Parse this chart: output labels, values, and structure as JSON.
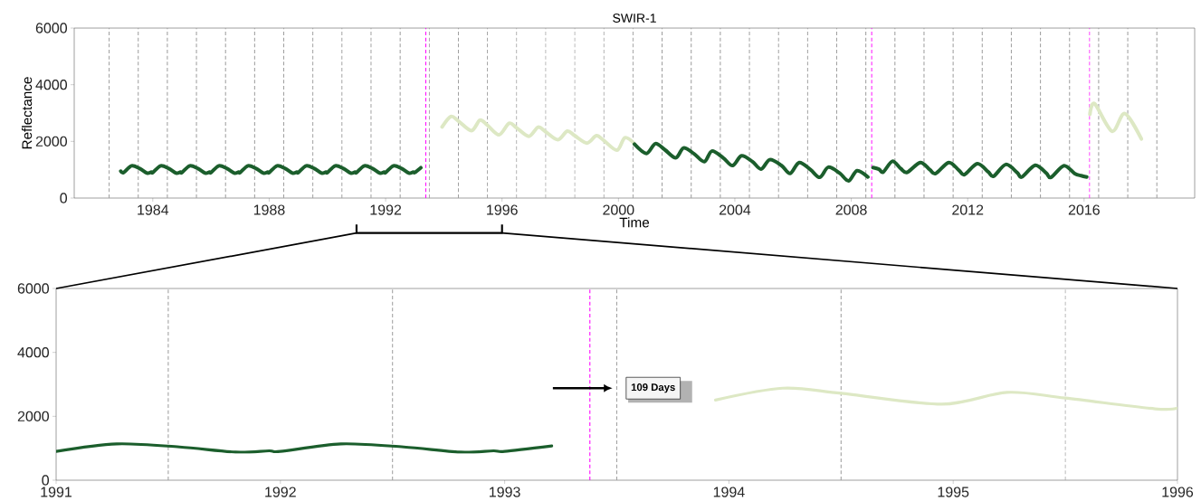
{
  "chart_data": [
    {
      "type": "line",
      "title": "SWIR-1",
      "xlabel": "Time",
      "ylabel": "Reflectance",
      "xlim": [
        1981.3,
        2019.8
      ],
      "ylim": [
        0,
        6000
      ],
      "xticks": [
        1984,
        1988,
        1992,
        1996,
        2000,
        2004,
        2008,
        2012,
        2016
      ],
      "yticks": [
        0,
        2000,
        4000,
        6000
      ],
      "series": [
        {
          "color": "#1b5e2c",
          "x": [
            1982.9,
            1983.0,
            1983.27,
            1983.55,
            1983.8,
            1983.95,
            1984.0,
            1984.27,
            1984.55,
            1984.8,
            1984.95,
            1985.0,
            1985.27,
            1985.55,
            1985.8,
            1985.95,
            1986.0,
            1986.27,
            1986.55,
            1986.8,
            1986.95,
            1987.0,
            1987.27,
            1987.55,
            1987.8,
            1987.95,
            1988.0,
            1988.27,
            1988.55,
            1988.8,
            1988.95,
            1989.0,
            1989.27,
            1989.55,
            1989.8,
            1989.95,
            1990.0,
            1990.27,
            1990.55,
            1990.8,
            1990.95,
            1991.0,
            1991.27,
            1991.55,
            1991.8,
            1991.95,
            1992.0,
            1992.27,
            1992.55,
            1992.8,
            1992.95,
            1993.0,
            1993.21
          ],
          "values": [
            950,
            900,
            1137,
            1040,
            880,
            920,
            900,
            1137,
            1040,
            880,
            920,
            900,
            1137,
            1040,
            880,
            920,
            900,
            1137,
            1040,
            880,
            920,
            900,
            1137,
            1040,
            880,
            920,
            900,
            1137,
            1040,
            880,
            920,
            900,
            1137,
            1040,
            880,
            920,
            900,
            1137,
            1040,
            880,
            920,
            900,
            1137,
            1040,
            880,
            920,
            900,
            1137,
            1040,
            880,
            920,
            900,
            1070
          ]
        },
        {
          "color": "#dde8c4",
          "x": [
            1993.94,
            1994.24,
            1994.5,
            1994.95,
            1995.24,
            1995.5,
            1995.9,
            1996.24,
            1996.5,
            1996.92,
            1997.24,
            1997.5,
            1997.92,
            1998.24,
            1998.5,
            1998.92,
            1999.24,
            1999.5,
            1999.95,
            2000.22,
            2000.55
          ],
          "values": [
            2510,
            2880,
            2720,
            2380,
            2750,
            2570,
            2235,
            2640,
            2480,
            2180,
            2500,
            2340,
            2060,
            2360,
            2200,
            1940,
            2200,
            2030,
            1690,
            2130,
            1920
          ]
        },
        {
          "color": "#1b5e2c",
          "x": [
            2000.55,
            2000.96,
            2001.27,
            2001.6,
            2001.97,
            2002.24,
            2002.6,
            2002.95,
            2003.21,
            2003.6,
            2003.92,
            2004.23,
            2004.6,
            2004.9,
            2005.2,
            2005.6,
            2005.9,
            2006.21,
            2006.6,
            2006.92,
            2007.21,
            2007.6,
            2007.91,
            2008.2,
            2008.57
          ],
          "values": [
            1900,
            1574,
            1920,
            1700,
            1420,
            1768,
            1560,
            1283,
            1657,
            1420,
            1146,
            1490,
            1290,
            1021,
            1353,
            1150,
            868,
            1255,
            1000,
            731,
            1090,
            880,
            606,
            967,
            744
          ]
        },
        {
          "color": "#1b5e2c",
          "x": [
            2008.75,
            2008.95,
            2009.1,
            2009.41,
            2009.7,
            2009.92,
            2010.37,
            2010.7,
            2010.9,
            2011.35,
            2011.7,
            2011.89,
            2012.33,
            2012.7,
            2012.89,
            2013.31,
            2013.7,
            2013.86,
            2014.32,
            2014.7,
            2014.86,
            2015.31,
            2015.68,
            2015.9,
            2016.09
          ],
          "values": [
            1076,
            1020,
            920,
            1297,
            1040,
            910,
            1255,
            1000,
            868,
            1255,
            980,
            827,
            1212,
            930,
            772,
            1185,
            900,
            744,
            1157,
            880,
            731,
            1143,
            860,
            790,
            744
          ]
        },
        {
          "color": "#dde8c4",
          "x": [
            2016.2,
            2016.36,
            2016.96,
            2017.4,
            2017.97
          ],
          "values": [
            2955,
            3330,
            2360,
            2980,
            2085
          ]
        }
      ],
      "ref_lines": [
        {
          "axis": "x",
          "value": 1982.5,
          "color": "#a0a0a0",
          "line_style": "dashed"
        },
        {
          "axis": "x",
          "value": 1983.5,
          "color": "#a0a0a0",
          "line_style": "dashed"
        },
        {
          "axis": "x",
          "value": 1984.5,
          "color": "#a0a0a0",
          "line_style": "dashed"
        },
        {
          "axis": "x",
          "value": 1985.5,
          "color": "#a0a0a0",
          "line_style": "dashed"
        },
        {
          "axis": "x",
          "value": 1986.5,
          "color": "#a0a0a0",
          "line_style": "dashed"
        },
        {
          "axis": "x",
          "value": 1987.5,
          "color": "#a0a0a0",
          "line_style": "dashed"
        },
        {
          "axis": "x",
          "value": 1988.5,
          "color": "#a0a0a0",
          "line_style": "dashed"
        },
        {
          "axis": "x",
          "value": 1989.5,
          "color": "#a0a0a0",
          "line_style": "dashed"
        },
        {
          "axis": "x",
          "value": 1990.5,
          "color": "#a0a0a0",
          "line_style": "dashed"
        },
        {
          "axis": "x",
          "value": 1991.5,
          "color": "#a0a0a0",
          "line_style": "dashed"
        },
        {
          "axis": "x",
          "value": 1992.5,
          "color": "#a0a0a0",
          "line_style": "dashed"
        },
        {
          "axis": "x",
          "value": 1993.5,
          "color": "#a0a0a0",
          "line_style": "dashed"
        },
        {
          "axis": "x",
          "value": 1994.5,
          "color": "#a0a0a0",
          "line_style": "dashed"
        },
        {
          "axis": "x",
          "value": 1995.5,
          "color": "#a0a0a0",
          "line_style": "dashed"
        },
        {
          "axis": "x",
          "value": 1996.5,
          "color": "#a0a0a0",
          "line_style": "dashed"
        },
        {
          "axis": "x",
          "value": 1997.5,
          "color": "#a0a0a0",
          "line_style": "dashed"
        },
        {
          "axis": "x",
          "value": 1998.5,
          "color": "#a0a0a0",
          "line_style": "dashed"
        },
        {
          "axis": "x",
          "value": 1999.5,
          "color": "#a0a0a0",
          "line_style": "dashed"
        },
        {
          "axis": "x",
          "value": 2000.5,
          "color": "#a0a0a0",
          "line_style": "dashed"
        },
        {
          "axis": "x",
          "value": 2001.5,
          "color": "#a0a0a0",
          "line_style": "dashed"
        },
        {
          "axis": "x",
          "value": 2002.5,
          "color": "#a0a0a0",
          "line_style": "dashed"
        },
        {
          "axis": "x",
          "value": 2003.5,
          "color": "#a0a0a0",
          "line_style": "dashed"
        },
        {
          "axis": "x",
          "value": 2004.5,
          "color": "#a0a0a0",
          "line_style": "dashed"
        },
        {
          "axis": "x",
          "value": 2005.5,
          "color": "#a0a0a0",
          "line_style": "dashed"
        },
        {
          "axis": "x",
          "value": 2006.5,
          "color": "#a0a0a0",
          "line_style": "dashed"
        },
        {
          "axis": "x",
          "value": 2007.5,
          "color": "#a0a0a0",
          "line_style": "dashed"
        },
        {
          "axis": "x",
          "value": 2008.5,
          "color": "#a0a0a0",
          "line_style": "dashed"
        },
        {
          "axis": "x",
          "value": 2009.5,
          "color": "#a0a0a0",
          "line_style": "dashed"
        },
        {
          "axis": "x",
          "value": 2010.5,
          "color": "#a0a0a0",
          "line_style": "dashed"
        },
        {
          "axis": "x",
          "value": 2011.5,
          "color": "#a0a0a0",
          "line_style": "dashed"
        },
        {
          "axis": "x",
          "value": 2012.5,
          "color": "#a0a0a0",
          "line_style": "dashed"
        },
        {
          "axis": "x",
          "value": 2013.5,
          "color": "#a0a0a0",
          "line_style": "dashed"
        },
        {
          "axis": "x",
          "value": 2014.5,
          "color": "#a0a0a0",
          "line_style": "dashed"
        },
        {
          "axis": "x",
          "value": 2015.5,
          "color": "#a0a0a0",
          "line_style": "dashed"
        },
        {
          "axis": "x",
          "value": 2016.5,
          "color": "#a0a0a0",
          "line_style": "dashed"
        },
        {
          "axis": "x",
          "value": 2017.5,
          "color": "#a0a0a0",
          "line_style": "dashed"
        },
        {
          "axis": "x",
          "value": 2018.5,
          "color": "#a0a0a0",
          "line_style": "dashed"
        },
        {
          "axis": "x",
          "value": 1993.38,
          "color": "#ff00ff",
          "line_style": "dashed"
        },
        {
          "axis": "x",
          "value": 2008.7,
          "color": "#ff00ff",
          "line_style": "dashed"
        },
        {
          "axis": "x",
          "value": 2016.19,
          "color": "#ff00ff",
          "line_style": "dashed"
        }
      ]
    },
    {
      "type": "line",
      "xlim": [
        1991,
        1996
      ],
      "ylim": [
        0,
        6000
      ],
      "xticks": [
        1991,
        1992,
        1993,
        1994,
        1995,
        1996
      ],
      "yticks": [
        0,
        2000,
        4000,
        6000
      ],
      "series": [
        {
          "color": "#1b5e2c",
          "x": [
            1991.0,
            1991.27,
            1991.55,
            1991.8,
            1991.95,
            1992.0,
            1992.27,
            1992.55,
            1992.8,
            1992.95,
            1993.0,
            1993.21
          ],
          "values": [
            900,
            1137,
            1040,
            880,
            920,
            900,
            1137,
            1040,
            880,
            920,
            900,
            1070
          ]
        },
        {
          "color": "#dde8c4",
          "x": [
            1993.94,
            1994.24,
            1994.5,
            1994.95,
            1995.24,
            1995.5,
            1995.9,
            1996.0
          ],
          "values": [
            2510,
            2880,
            2720,
            2380,
            2750,
            2570,
            2235,
            2260
          ]
        }
      ],
      "ref_lines": [
        {
          "axis": "x",
          "value": 1991.5,
          "color": "#a0a0a0",
          "line_style": "dashed"
        },
        {
          "axis": "x",
          "value": 1992.5,
          "color": "#a0a0a0",
          "line_style": "dashed"
        },
        {
          "axis": "x",
          "value": 1993.5,
          "color": "#a0a0a0",
          "line_style": "dashed"
        },
        {
          "axis": "x",
          "value": 1994.5,
          "color": "#a0a0a0",
          "line_style": "dashed"
        },
        {
          "axis": "x",
          "value": 1995.5,
          "color": "#a0a0a0",
          "line_style": "dashed"
        },
        {
          "axis": "x",
          "value": 1993.38,
          "color": "#ff00ff",
          "line_style": "dashed"
        }
      ],
      "annotations": [
        "109 Days"
      ]
    }
  ]
}
